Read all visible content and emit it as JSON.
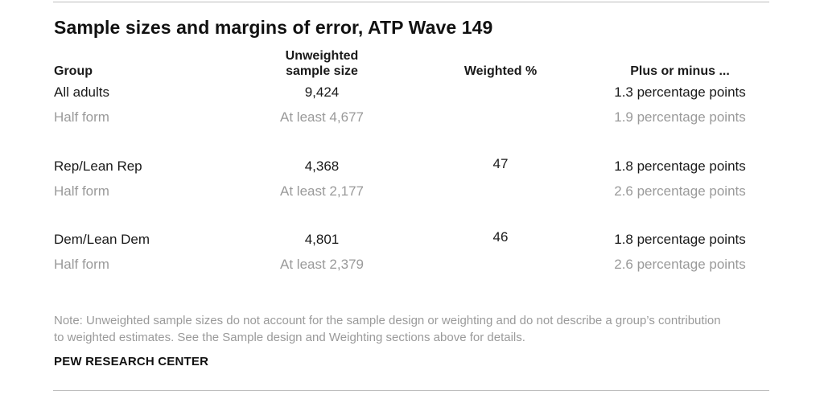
{
  "title": "Sample sizes and margins of error, ATP Wave 149",
  "headers": {
    "group": "Group",
    "unweighted_line1": "Unweighted",
    "unweighted_line2": "sample size",
    "weighted": "Weighted %",
    "plus_minus": "Plus or minus ..."
  },
  "rows": [
    {
      "group": "All adults",
      "size": "9,424",
      "weighted": "",
      "moe": "1.3 percentage points",
      "half_label": "Half form",
      "half_size": "At least 4,677",
      "half_moe": "1.9 percentage points"
    },
    {
      "group": "Rep/Lean Rep",
      "size": "4,368",
      "weighted": "47",
      "moe": "1.8 percentage points",
      "half_label": "Half form",
      "half_size": "At least 2,177",
      "half_moe": "2.6 percentage points"
    },
    {
      "group": "Dem/Lean Dem",
      "size": "4,801",
      "weighted": "46",
      "moe": "1.8 percentage points",
      "half_label": "Half form",
      "half_size": "At least 2,379",
      "half_moe": "2.6 percentage points"
    }
  ],
  "note": "Note: Unweighted sample sizes do not account for the sample design or weighting and do not describe a group’s contribution to weighted estimates. See the Sample design and Weighting sections above for details.",
  "source": "PEW RESEARCH CENTER",
  "colors": {
    "main_text": "#1a1a1a",
    "sub_text": "#9a9a9a",
    "rule": "#bdbdbd"
  }
}
